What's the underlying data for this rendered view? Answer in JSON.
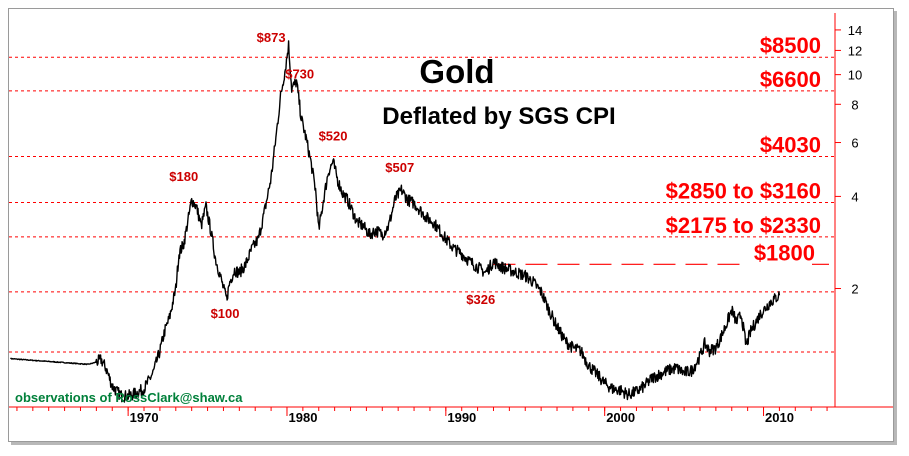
{
  "chart_data": {
    "type": "line",
    "title": "Gold",
    "subtitle": "Deflated by SGS CPI",
    "credit": "observations of RossClark@shaw.ca",
    "colors": {
      "series": "#000000",
      "levels": "#ff0000",
      "axis": "#ff0000",
      "peak_labels": "#cc0000",
      "credit": "#00803a"
    },
    "xlim": [
      1962.5,
      2014.5
    ],
    "ylim": [
      0.82,
      15.2
    ],
    "y_scale": "log",
    "x_ticks": [
      1970,
      1980,
      1990,
      2000,
      2010
    ],
    "y_ticks": [
      2,
      4,
      6,
      8,
      10,
      12,
      14
    ],
    "level_lines": [
      {
        "label": "$8500",
        "y": 11.4
      },
      {
        "label": "$6600",
        "y": 8.85
      },
      {
        "label": "$4030",
        "y": 5.4
      },
      {
        "label": "$2850 to $3160",
        "y": 3.82
      },
      {
        "label": "$2175 to $2330",
        "y": 2.95
      },
      {
        "label": "",
        "y": 1.95
      },
      {
        "label": "",
        "y": 1.24
      }
    ],
    "dash_line": {
      "label": "$1800",
      "y": 2.4,
      "x_start": 1993
    },
    "annotations": [
      {
        "text": "$873",
        "x": 1979.0,
        "y": 12.8
      },
      {
        "text": "$730",
        "x": 1980.8,
        "y": 9.7
      },
      {
        "text": "$520",
        "x": 1982.9,
        "y": 6.1
      },
      {
        "text": "$180",
        "x": 1973.5,
        "y": 4.5
      },
      {
        "text": "$100",
        "x": 1976.1,
        "y": 1.6
      },
      {
        "text": "$507",
        "x": 1987.1,
        "y": 4.8
      },
      {
        "text": "$326",
        "x": 1992.2,
        "y": 1.78
      }
    ],
    "series": [
      {
        "x": [
          1962.6,
          1963.5,
          1964.5,
          1965.5,
          1966.5,
          1967.5,
          1968.0,
          1968.3,
          1968.6,
          1969.0,
          1969.3,
          1969.6,
          1970.0,
          1970.5,
          1971.0,
          1971.3,
          1971.6,
          1972.0,
          1972.3,
          1972.6,
          1973.0,
          1973.2,
          1973.5,
          1973.8,
          1974.0,
          1974.3,
          1974.6,
          1974.9,
          1975.2,
          1975.5,
          1975.8,
          1976.0,
          1976.2,
          1976.4,
          1976.7,
          1977.0,
          1977.4,
          1977.8,
          1978.2,
          1978.6,
          1979.0,
          1979.3,
          1979.6,
          1979.9,
          1980.1,
          1980.3,
          1980.6,
          1980.9,
          1981.2,
          1981.5,
          1981.8,
          1982.0,
          1982.3,
          1982.6,
          1982.9,
          1983.2,
          1983.5,
          1983.8,
          1984.1,
          1984.4,
          1984.8,
          1985.2,
          1985.6,
          1986.0,
          1986.4,
          1986.8,
          1987.2,
          1987.6,
          1988.0,
          1988.4,
          1988.8,
          1989.2,
          1989.6,
          1990.0,
          1990.5,
          1991.0,
          1991.5,
          1992.0,
          1992.5,
          1993.0,
          1993.5,
          1994.0,
          1994.5,
          1995.0,
          1995.5,
          1996.0,
          1996.5,
          1997.0,
          1997.5,
          1998.0,
          1998.5,
          1999.0,
          1999.5,
          2000.0,
          2000.5,
          2001.0,
          2001.5,
          2002.0,
          2002.5,
          2003.0,
          2003.5,
          2004.0,
          2004.5,
          2005.0,
          2005.5,
          2006.0,
          2006.3,
          2006.6,
          2007.0,
          2007.3,
          2007.6,
          2008.0,
          2008.3,
          2008.6,
          2008.9,
          2009.2,
          2009.5,
          2009.8,
          2010.1,
          2010.4,
          2010.7,
          2011.0
        ],
        "y": [
          1.18,
          1.17,
          1.16,
          1.15,
          1.14,
          1.13,
          1.15,
          1.17,
          1.1,
          0.96,
          0.92,
          0.89,
          0.89,
          0.91,
          0.94,
          1.0,
          1.07,
          1.25,
          1.45,
          1.6,
          2.0,
          2.6,
          2.8,
          3.4,
          3.9,
          3.7,
          3.2,
          3.7,
          3.1,
          2.5,
          2.2,
          2.0,
          1.85,
          2.1,
          2.3,
          2.25,
          2.4,
          2.7,
          2.9,
          3.6,
          4.6,
          6.2,
          8.5,
          10.5,
          12.5,
          9.0,
          9.5,
          7.2,
          6.2,
          5.2,
          4.2,
          3.1,
          3.9,
          4.8,
          5.2,
          4.5,
          4.1,
          3.9,
          3.6,
          3.3,
          3.2,
          3.0,
          3.1,
          3.0,
          3.2,
          3.9,
          4.2,
          3.9,
          3.8,
          3.6,
          3.4,
          3.3,
          3.1,
          2.9,
          2.7,
          2.6,
          2.45,
          2.35,
          2.25,
          2.45,
          2.35,
          2.3,
          2.25,
          2.2,
          2.1,
          1.95,
          1.7,
          1.5,
          1.35,
          1.28,
          1.25,
          1.12,
          1.05,
          0.98,
          0.94,
          0.93,
          0.9,
          0.92,
          0.96,
          1.02,
          1.05,
          1.08,
          1.1,
          1.06,
          1.08,
          1.2,
          1.32,
          1.25,
          1.28,
          1.38,
          1.5,
          1.7,
          1.55,
          1.65,
          1.3,
          1.45,
          1.55,
          1.65,
          1.72,
          1.8,
          1.85,
          1.9
        ]
      }
    ]
  }
}
